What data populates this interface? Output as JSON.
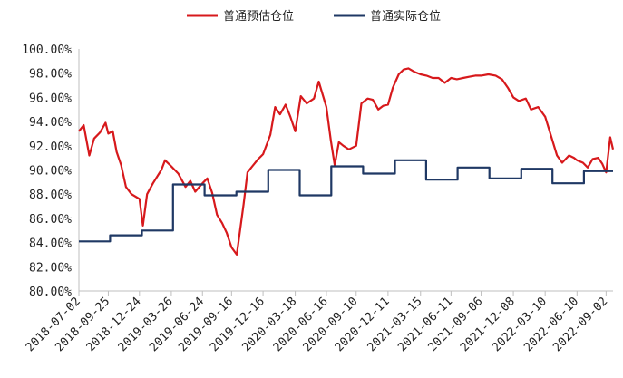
{
  "chart_data": {
    "type": "line",
    "title": "",
    "xlabel": "",
    "ylabel": "",
    "ylim": [
      80,
      100
    ],
    "y_ticks": [
      "100.00%",
      "98.00%",
      "96.00%",
      "94.00%",
      "92.00%",
      "90.00%",
      "88.00%",
      "86.00%",
      "84.00%",
      "82.00%",
      "80.00%"
    ],
    "x_ticks": [
      "2018-07-02",
      "2018-09-25",
      "2018-12-24",
      "2019-03-26",
      "2019-06-24",
      "2019-09-16",
      "2019-12-16",
      "2020-03-18",
      "2020-06-16",
      "2020-09-10",
      "2020-12-11",
      "2021-03-15",
      "2021-06-11",
      "2021-09-06",
      "2021-12-08",
      "2022-03-10",
      "2022-06-10",
      "2022-09-02"
    ],
    "legend_position": "top",
    "grid": false,
    "series": [
      {
        "name": "普通预估仓位",
        "color": "#d7191c",
        "step": false,
        "points": [
          [
            "2018-07-02",
            93.2
          ],
          [
            "2018-07-16",
            93.7
          ],
          [
            "2018-08-01",
            91.2
          ],
          [
            "2018-08-15",
            92.6
          ],
          [
            "2018-09-01",
            93.1
          ],
          [
            "2018-09-17",
            93.9
          ],
          [
            "2018-09-25",
            93.0
          ],
          [
            "2018-10-08",
            93.2
          ],
          [
            "2018-10-19",
            91.5
          ],
          [
            "2018-11-01",
            90.4
          ],
          [
            "2018-11-15",
            88.6
          ],
          [
            "2018-12-01",
            88.0
          ],
          [
            "2018-12-24",
            87.6
          ],
          [
            "2019-01-03",
            85.4
          ],
          [
            "2019-01-15",
            88.0
          ],
          [
            "2019-02-01",
            88.9
          ],
          [
            "2019-02-25",
            90.0
          ],
          [
            "2019-03-08",
            90.8
          ],
          [
            "2019-03-26",
            90.3
          ],
          [
            "2019-04-15",
            89.7
          ],
          [
            "2019-05-06",
            88.6
          ],
          [
            "2019-05-20",
            89.1
          ],
          [
            "2019-06-03",
            88.2
          ],
          [
            "2019-06-24",
            88.9
          ],
          [
            "2019-07-08",
            89.3
          ],
          [
            "2019-07-22",
            88.1
          ],
          [
            "2019-08-05",
            86.3
          ],
          [
            "2019-08-20",
            85.6
          ],
          [
            "2019-09-02",
            84.8
          ],
          [
            "2019-09-16",
            83.6
          ],
          [
            "2019-10-01",
            83.0
          ],
          [
            "2019-10-21",
            87.2
          ],
          [
            "2019-11-01",
            89.8
          ],
          [
            "2019-11-15",
            90.3
          ],
          [
            "2019-12-02",
            90.9
          ],
          [
            "2019-12-16",
            91.3
          ],
          [
            "2020-01-06",
            92.9
          ],
          [
            "2020-01-20",
            95.2
          ],
          [
            "2020-02-03",
            94.6
          ],
          [
            "2020-02-19",
            95.4
          ],
          [
            "2020-03-04",
            94.4
          ],
          [
            "2020-03-18",
            93.2
          ],
          [
            "2020-04-03",
            96.1
          ],
          [
            "2020-04-20",
            95.5
          ],
          [
            "2020-05-11",
            95.9
          ],
          [
            "2020-05-25",
            97.3
          ],
          [
            "2020-06-16",
            95.2
          ],
          [
            "2020-06-29",
            92.4
          ],
          [
            "2020-07-10",
            90.4
          ],
          [
            "2020-07-22",
            92.3
          ],
          [
            "2020-08-04",
            92.0
          ],
          [
            "2020-08-20",
            91.7
          ],
          [
            "2020-09-10",
            92.0
          ],
          [
            "2020-09-25",
            95.5
          ],
          [
            "2020-10-13",
            95.9
          ],
          [
            "2020-10-28",
            95.8
          ],
          [
            "2020-11-13",
            95.0
          ],
          [
            "2020-11-27",
            95.3
          ],
          [
            "2020-12-11",
            95.4
          ],
          [
            "2020-12-25",
            96.8
          ],
          [
            "2021-01-11",
            97.9
          ],
          [
            "2021-01-25",
            98.3
          ],
          [
            "2021-02-08",
            98.4
          ],
          [
            "2021-02-26",
            98.1
          ],
          [
            "2021-03-15",
            97.9
          ],
          [
            "2021-04-01",
            97.8
          ],
          [
            "2021-04-19",
            97.6
          ],
          [
            "2021-05-06",
            97.6
          ],
          [
            "2021-05-24",
            97.2
          ],
          [
            "2021-06-11",
            97.6
          ],
          [
            "2021-06-28",
            97.5
          ],
          [
            "2021-07-16",
            97.6
          ],
          [
            "2021-08-02",
            97.7
          ],
          [
            "2021-08-20",
            97.8
          ],
          [
            "2021-09-06",
            97.8
          ],
          [
            "2021-09-27",
            97.9
          ],
          [
            "2021-10-18",
            97.8
          ],
          [
            "2021-11-05",
            97.5
          ],
          [
            "2021-11-22",
            96.8
          ],
          [
            "2021-12-08",
            96.0
          ],
          [
            "2021-12-24",
            95.7
          ],
          [
            "2022-01-13",
            95.9
          ],
          [
            "2022-01-28",
            95.0
          ],
          [
            "2022-02-18",
            95.2
          ],
          [
            "2022-03-10",
            94.4
          ],
          [
            "2022-03-25",
            93.0
          ],
          [
            "2022-04-13",
            91.2
          ],
          [
            "2022-04-28",
            90.6
          ],
          [
            "2022-05-18",
            91.2
          ],
          [
            "2022-06-01",
            91.0
          ],
          [
            "2022-06-10",
            90.8
          ],
          [
            "2022-06-27",
            90.6
          ],
          [
            "2022-07-11",
            90.2
          ],
          [
            "2022-07-25",
            90.9
          ],
          [
            "2022-08-10",
            91.0
          ],
          [
            "2022-08-22",
            90.5
          ],
          [
            "2022-09-02",
            89.8
          ],
          [
            "2022-09-14",
            92.7
          ],
          [
            "2022-09-22",
            91.7
          ]
        ]
      },
      {
        "name": "普通实际仓位",
        "color": "#1f3864",
        "step": true,
        "points": [
          [
            "2018-07-02",
            84.1
          ],
          [
            "2018-09-30",
            84.6
          ],
          [
            "2018-12-31",
            85.0
          ],
          [
            "2019-03-31",
            88.8
          ],
          [
            "2019-06-30",
            87.9
          ],
          [
            "2019-09-30",
            88.2
          ],
          [
            "2019-12-31",
            90.0
          ],
          [
            "2020-03-31",
            87.9
          ],
          [
            "2020-06-30",
            90.3
          ],
          [
            "2020-09-30",
            89.7
          ],
          [
            "2020-12-31",
            90.8
          ],
          [
            "2021-03-31",
            89.2
          ],
          [
            "2021-06-30",
            90.2
          ],
          [
            "2021-09-30",
            89.3
          ],
          [
            "2021-12-31",
            90.1
          ],
          [
            "2022-03-31",
            88.9
          ],
          [
            "2022-06-30",
            89.9
          ],
          [
            "2022-09-22",
            89.9
          ]
        ]
      }
    ]
  }
}
